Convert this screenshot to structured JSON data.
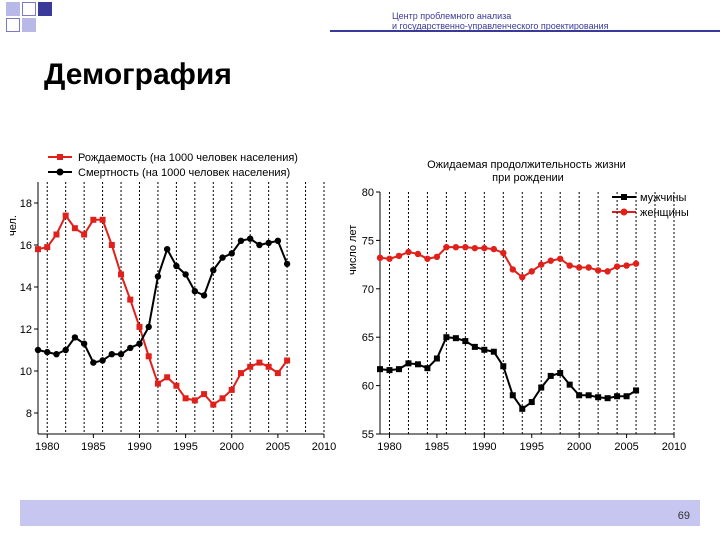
{
  "header": {
    "line1": "Центр проблемного анализа",
    "line2": "и государственно-управленческого проектирования"
  },
  "page_title": "Демография",
  "page_number": "69",
  "colors": {
    "accent": "#3a3a9a",
    "birth": "#e0201a",
    "death": "#000000",
    "footer": "#c6c6f0"
  },
  "chart_data": [
    {
      "type": "line",
      "title": "",
      "ylabel": "чел.",
      "xlim": [
        1979,
        2010
      ],
      "ylim": [
        7,
        19
      ],
      "xticks": [
        1980,
        1985,
        1990,
        1995,
        2000,
        2005,
        2010
      ],
      "yticks": [
        8,
        10,
        12,
        14,
        16,
        18
      ],
      "grid": "vertical-dashed",
      "legend": "top",
      "series": [
        {
          "name": "Рождаемость (на 1000 человек населения)",
          "color": "#e0201a",
          "marker": "square",
          "x": [
            1979,
            1980,
            1981,
            1982,
            1983,
            1984,
            1985,
            1986,
            1987,
            1988,
            1989,
            1990,
            1991,
            1992,
            1993,
            1994,
            1995,
            1996,
            1997,
            1998,
            1999,
            2000,
            2001,
            2002,
            2003,
            2004,
            2005,
            2006
          ],
          "y": [
            15.8,
            15.9,
            16.5,
            17.4,
            16.8,
            16.5,
            17.2,
            17.2,
            16.0,
            14.6,
            13.4,
            12.1,
            10.7,
            9.4,
            9.7,
            9.3,
            8.7,
            8.6,
            8.9,
            8.4,
            8.7,
            9.1,
            9.9,
            10.2,
            10.4,
            10.2,
            9.9,
            10.5
          ]
        },
        {
          "name": "Смертность (на 1000 человек населения)",
          "color": "#000000",
          "marker": "circle",
          "x": [
            1979,
            1980,
            1981,
            1982,
            1983,
            1984,
            1985,
            1986,
            1987,
            1988,
            1989,
            1990,
            1991,
            1992,
            1993,
            1994,
            1995,
            1996,
            1997,
            1998,
            1999,
            2000,
            2001,
            2002,
            2003,
            2004,
            2005,
            2006
          ],
          "y": [
            11.0,
            10.9,
            10.8,
            11.0,
            11.6,
            11.3,
            10.4,
            10.5,
            10.8,
            10.8,
            11.1,
            11.3,
            12.1,
            14.5,
            15.8,
            15.0,
            14.6,
            13.8,
            13.6,
            14.8,
            15.4,
            15.6,
            16.2,
            16.3,
            16.0,
            16.1,
            16.2,
            15.1
          ]
        }
      ]
    },
    {
      "type": "line",
      "title": "Ожидаемая продолжительность жизни при рождении",
      "ylabel": "число лет",
      "xlim": [
        1979,
        2010
      ],
      "ylim": [
        55,
        80
      ],
      "xticks": [
        1980,
        1985,
        1990,
        1995,
        2000,
        2005,
        2010
      ],
      "yticks": [
        55,
        60,
        65,
        70,
        75,
        80
      ],
      "grid": "vertical-dashed",
      "legend": "top-right",
      "series": [
        {
          "name": "мужчины",
          "color": "#000000",
          "marker": "square",
          "x": [
            1979,
            1980,
            1981,
            1982,
            1983,
            1984,
            1985,
            1986,
            1987,
            1988,
            1989,
            1990,
            1991,
            1992,
            1993,
            1994,
            1995,
            1996,
            1997,
            1998,
            1999,
            2000,
            2001,
            2002,
            2003,
            2004,
            2005,
            2006
          ],
          "y": [
            61.7,
            61.6,
            61.7,
            62.3,
            62.2,
            61.8,
            62.8,
            65.0,
            64.9,
            64.6,
            64.0,
            63.7,
            63.5,
            62.0,
            59.0,
            57.6,
            58.3,
            59.8,
            61.0,
            61.3,
            60.1,
            59.0,
            59.0,
            58.8,
            58.7,
            58.9,
            58.9,
            59.5
          ]
        },
        {
          "name": "женщины",
          "color": "#e0201a",
          "marker": "circle",
          "x": [
            1979,
            1980,
            1981,
            1982,
            1983,
            1984,
            1985,
            1986,
            1987,
            1988,
            1989,
            1990,
            1991,
            1992,
            1993,
            1994,
            1995,
            1996,
            1997,
            1998,
            1999,
            2000,
            2001,
            2002,
            2003,
            2004,
            2005,
            2006
          ],
          "y": [
            73.2,
            73.1,
            73.4,
            73.8,
            73.6,
            73.1,
            73.3,
            74.3,
            74.3,
            74.3,
            74.2,
            74.2,
            74.1,
            73.7,
            72.0,
            71.2,
            71.8,
            72.5,
            72.9,
            73.1,
            72.4,
            72.2,
            72.2,
            71.9,
            71.8,
            72.3,
            72.4,
            72.6
          ]
        }
      ]
    }
  ]
}
